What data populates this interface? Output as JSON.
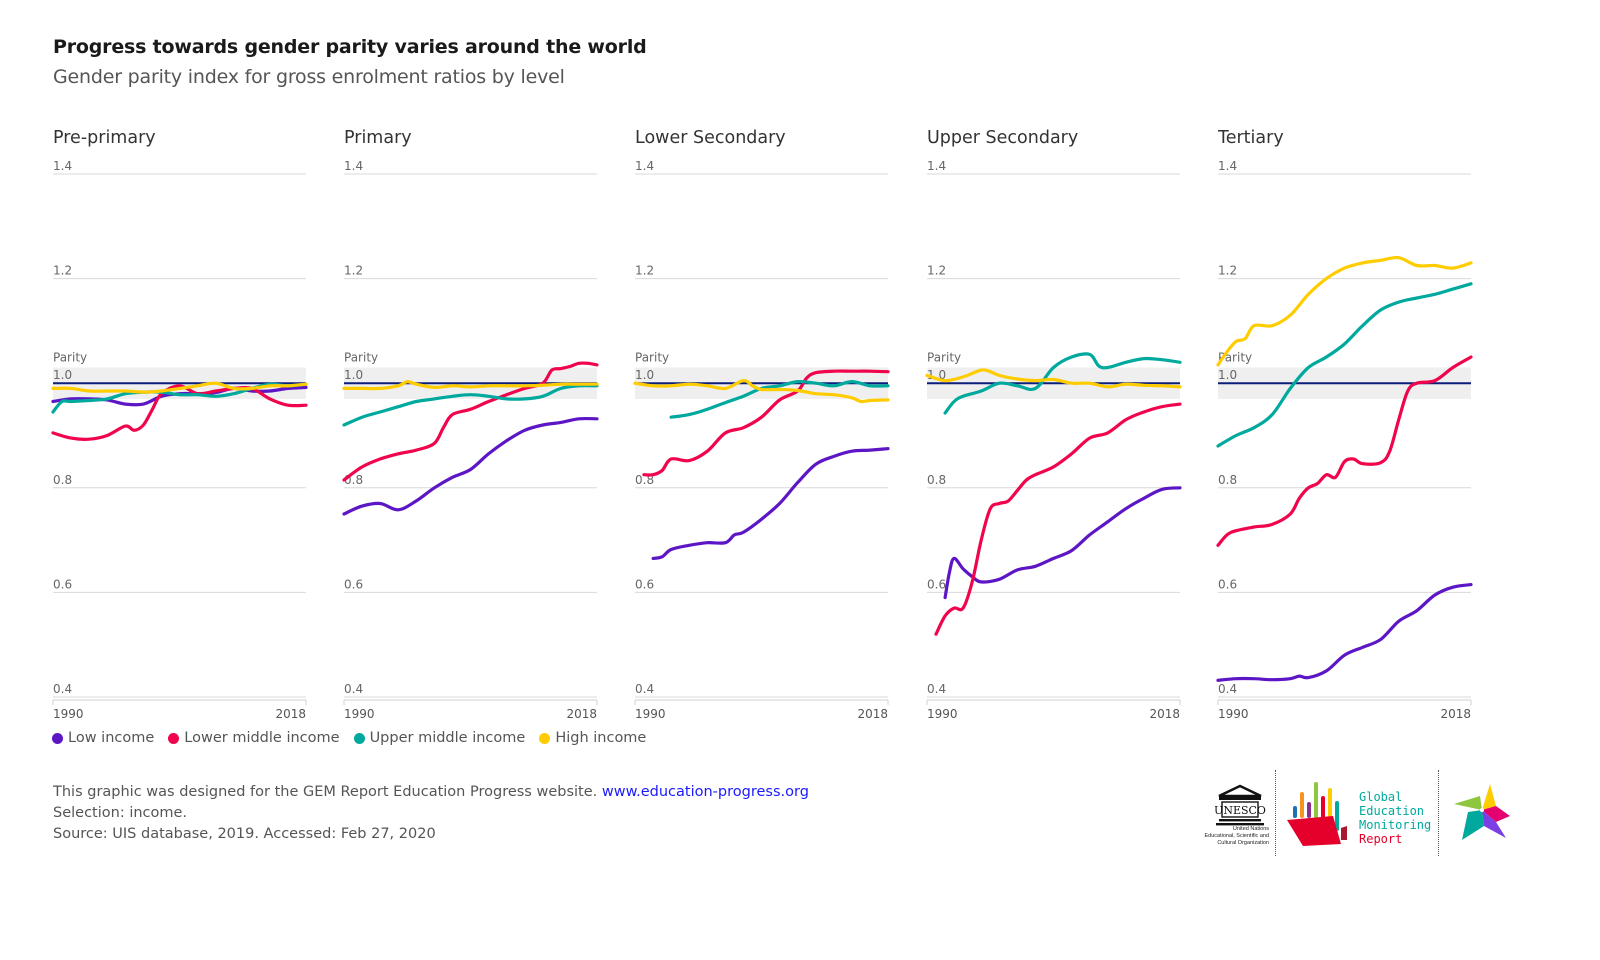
{
  "header": {
    "title": "Progress towards gender parity varies around the world",
    "subtitle": "Gender parity index for gross enrolment ratios by level"
  },
  "legend": [
    {
      "name": "Low income",
      "color": "#5c16c5"
    },
    {
      "name": "Lower middle income",
      "color": "#f0044c"
    },
    {
      "name": "Upper middle income",
      "color": "#00a99d"
    },
    {
      "name": "High income",
      "color": "#ffcc00"
    }
  ],
  "footer": {
    "line1": "This graphic was designed for the GEM Report Education Progress website.",
    "link": "www.education-progress.org",
    "line2": "Selection: income.",
    "line3": "Source: UIS database, 2019. Accessed: Feb 27, 2020"
  },
  "logos": {
    "unesco_text": [
      "United Nations",
      "Educational, Scientific and",
      "Cultural Organization"
    ],
    "unesco_mark": "UNESCO",
    "gem_text": [
      "Global",
      "Education",
      "Monitoring",
      "Report"
    ]
  },
  "chart_data": [
    {
      "type": "line",
      "title": "Pre-primary",
      "yticks": [
        1.4,
        1.2,
        1.0,
        0.8,
        0.6,
        0.4
      ],
      "ylim": [
        0.4,
        1.4
      ],
      "xlim": [
        1990,
        2018
      ],
      "xticks": [
        "1990",
        "2018"
      ],
      "parity_label": "Parity",
      "parity_band": [
        0.97,
        1.03
      ],
      "parity_line": 1.0,
      "series": [
        {
          "name": "Low income",
          "x": [
            1990,
            1992,
            1994,
            1996,
            1998,
            2000,
            2002,
            2004,
            2006,
            2008,
            2010,
            2012,
            2014,
            2016,
            2018
          ],
          "values": [
            0.965,
            0.97,
            0.97,
            0.968,
            0.96,
            0.96,
            0.975,
            0.98,
            0.98,
            0.982,
            0.99,
            0.985,
            0.985,
            0.99,
            0.992
          ]
        },
        {
          "name": "Lower middle income",
          "x": [
            1990,
            1992,
            1994,
            1996,
            1998,
            1999,
            2000,
            2001,
            2002,
            2004,
            2006,
            2008,
            2010,
            2012,
            2014,
            2016,
            2018
          ],
          "values": [
            0.905,
            0.895,
            0.893,
            0.9,
            0.918,
            0.91,
            0.92,
            0.95,
            0.98,
            0.995,
            0.98,
            0.985,
            0.99,
            0.99,
            0.97,
            0.958,
            0.958
          ]
        },
        {
          "name": "Upper middle income",
          "x": [
            1990,
            1991,
            1992,
            1994,
            1996,
            1998,
            2000,
            2002,
            2004,
            2006,
            2008,
            2010,
            2012,
            2014,
            2016,
            2018
          ],
          "values": [
            0.945,
            0.965,
            0.965,
            0.967,
            0.97,
            0.98,
            0.983,
            0.983,
            0.978,
            0.978,
            0.975,
            0.98,
            0.99,
            0.998,
            0.995,
            0.998
          ]
        },
        {
          "name": "High income",
          "x": [
            1990,
            1992,
            1994,
            1996,
            1998,
            2000,
            2002,
            2004,
            2006,
            2008,
            2010,
            2012,
            2014,
            2016,
            2018
          ],
          "values": [
            0.99,
            0.99,
            0.985,
            0.985,
            0.985,
            0.983,
            0.985,
            0.99,
            0.995,
            1.0,
            0.99,
            0.99,
            0.995,
            0.995,
            0.998
          ]
        }
      ]
    },
    {
      "type": "line",
      "title": "Primary",
      "yticks": [
        1.4,
        1.2,
        1.0,
        0.8,
        0.6,
        0.4
      ],
      "ylim": [
        0.4,
        1.4
      ],
      "xlim": [
        1990,
        2018
      ],
      "xticks": [
        "1990",
        "2018"
      ],
      "parity_label": "Parity",
      "parity_band": [
        0.97,
        1.03
      ],
      "parity_line": 1.0,
      "series": [
        {
          "name": "Low income",
          "x": [
            1990,
            1992,
            1994,
            1996,
            1998,
            2000,
            2002,
            2004,
            2006,
            2008,
            2010,
            2012,
            2014,
            2016,
            2018
          ],
          "values": [
            0.75,
            0.765,
            0.77,
            0.758,
            0.775,
            0.8,
            0.82,
            0.835,
            0.865,
            0.89,
            0.91,
            0.92,
            0.925,
            0.932,
            0.932
          ]
        },
        {
          "name": "Lower middle income",
          "x": [
            1990,
            1992,
            1994,
            1996,
            1998,
            2000,
            2001,
            2002,
            2004,
            2006,
            2008,
            2010,
            2012,
            2013,
            2014,
            2015,
            2016,
            2017,
            2018
          ],
          "values": [
            0.815,
            0.84,
            0.855,
            0.865,
            0.872,
            0.885,
            0.915,
            0.94,
            0.95,
            0.965,
            0.978,
            0.99,
            1.0,
            1.025,
            1.028,
            1.032,
            1.038,
            1.038,
            1.035
          ]
        },
        {
          "name": "Upper middle income",
          "x": [
            1990,
            1992,
            1994,
            1996,
            1998,
            2000,
            2002,
            2004,
            2006,
            2008,
            2010,
            2012,
            2014,
            2016,
            2018
          ],
          "values": [
            0.92,
            0.935,
            0.945,
            0.955,
            0.965,
            0.97,
            0.975,
            0.978,
            0.975,
            0.97,
            0.97,
            0.975,
            0.99,
            0.995,
            0.995
          ]
        },
        {
          "name": "High income",
          "x": [
            1990,
            1992,
            1994,
            1996,
            1997,
            1998,
            2000,
            2002,
            2004,
            2006,
            2008,
            2010,
            2012,
            2014,
            2016,
            2018
          ],
          "values": [
            0.99,
            0.99,
            0.99,
            0.995,
            1.003,
            0.998,
            0.992,
            0.995,
            0.993,
            0.995,
            0.995,
            0.995,
            0.996,
            0.998,
            0.998,
            0.998
          ]
        }
      ]
    },
    {
      "type": "line",
      "title": "Lower Secondary",
      "yticks": [
        1.4,
        1.2,
        1.0,
        0.8,
        0.6,
        0.4
      ],
      "ylim": [
        0.4,
        1.4
      ],
      "xlim": [
        1990,
        2018
      ],
      "xticks": [
        "1990",
        "2018"
      ],
      "parity_label": "Parity",
      "parity_band": [
        0.97,
        1.03
      ],
      "parity_line": 1.0,
      "series": [
        {
          "name": "Low income",
          "x": [
            1992,
            1993,
            1994,
            1996,
            1998,
            2000,
            2001,
            2002,
            2004,
            2006,
            2008,
            2010,
            2012,
            2014,
            2016,
            2018
          ],
          "values": [
            0.665,
            0.668,
            0.682,
            0.69,
            0.695,
            0.695,
            0.71,
            0.715,
            0.74,
            0.77,
            0.81,
            0.845,
            0.86,
            0.87,
            0.872,
            0.875
          ]
        },
        {
          "name": "Lower middle income",
          "x": [
            1991,
            1992,
            1993,
            1994,
            1996,
            1998,
            2000,
            2002,
            2004,
            2006,
            2008,
            2009,
            2010,
            2012,
            2014,
            2016,
            2018
          ],
          "values": [
            0.825,
            0.825,
            0.833,
            0.855,
            0.852,
            0.87,
            0.905,
            0.915,
            0.935,
            0.968,
            0.985,
            1.01,
            1.02,
            1.023,
            1.023,
            1.023,
            1.022
          ]
        },
        {
          "name": "Upper middle income",
          "x": [
            1994,
            1996,
            1998,
            2000,
            2002,
            2004,
            2006,
            2008,
            2010,
            2012,
            2014,
            2016,
            2018
          ],
          "values": [
            0.935,
            0.94,
            0.95,
            0.963,
            0.975,
            0.99,
            0.995,
            1.003,
            1.0,
            0.995,
            1.003,
            0.995,
            0.995
          ]
        },
        {
          "name": "High income",
          "x": [
            1990,
            1992,
            1994,
            1996,
            1998,
            2000,
            2002,
            2003,
            2004,
            2006,
            2008,
            2010,
            2012,
            2014,
            2015,
            2016,
            2018
          ],
          "values": [
            1.0,
            0.995,
            0.995,
            0.998,
            0.995,
            0.99,
            1.005,
            0.995,
            0.988,
            0.988,
            0.986,
            0.98,
            0.978,
            0.972,
            0.965,
            0.967,
            0.968
          ]
        }
      ]
    },
    {
      "type": "line",
      "title": "Upper Secondary",
      "yticks": [
        1.4,
        1.2,
        1.0,
        0.8,
        0.6,
        0.4
      ],
      "ylim": [
        0.4,
        1.4
      ],
      "xlim": [
        1990,
        2018
      ],
      "xticks": [
        "1990",
        "2018"
      ],
      "parity_label": "Parity",
      "parity_band": [
        0.97,
        1.03
      ],
      "parity_line": 1.0,
      "series": [
        {
          "name": "Low income",
          "x": [
            1992,
            1992.5,
            1993,
            1994,
            1995,
            1996,
            1998,
            2000,
            2002,
            2004,
            2006,
            2008,
            2010,
            2012,
            2014,
            2016,
            2018
          ],
          "values": [
            0.59,
            0.64,
            0.665,
            0.645,
            0.63,
            0.62,
            0.625,
            0.643,
            0.65,
            0.665,
            0.68,
            0.71,
            0.735,
            0.76,
            0.78,
            0.797,
            0.8
          ]
        },
        {
          "name": "Lower middle income",
          "x": [
            1991,
            1992,
            1993,
            1994,
            1995,
            1996,
            1997,
            1998,
            1999,
            2000,
            2001,
            2002,
            2004,
            2006,
            2008,
            2010,
            2012,
            2014,
            2016,
            2018
          ],
          "values": [
            0.52,
            0.555,
            0.57,
            0.57,
            0.62,
            0.7,
            0.76,
            0.77,
            0.775,
            0.795,
            0.815,
            0.825,
            0.84,
            0.865,
            0.895,
            0.905,
            0.93,
            0.945,
            0.955,
            0.96
          ]
        },
        {
          "name": "Upper middle income",
          "x": [
            1992,
            1993,
            1994,
            1996,
            1998,
            2000,
            2002,
            2004,
            2006,
            2008,
            2009,
            2010,
            2012,
            2014,
            2016,
            2018
          ],
          "values": [
            0.943,
            0.965,
            0.975,
            0.985,
            1.0,
            0.995,
            0.99,
            1.03,
            1.05,
            1.055,
            1.033,
            1.03,
            1.04,
            1.047,
            1.045,
            1.04
          ]
        },
        {
          "name": "High income",
          "x": [
            1990,
            1992,
            1994,
            1996,
            1997,
            1998,
            2000,
            2002,
            2004,
            2006,
            2008,
            2010,
            2012,
            2014,
            2016,
            2018
          ],
          "values": [
            1.015,
            1.005,
            1.012,
            1.025,
            1.022,
            1.015,
            1.008,
            1.005,
            1.007,
            1.0,
            1.0,
            0.993,
            0.998,
            0.996,
            0.995,
            0.993
          ]
        }
      ]
    },
    {
      "type": "line",
      "title": "Tertiary",
      "yticks": [
        1.4,
        1.2,
        1.0,
        0.8,
        0.6,
        0.4
      ],
      "ylim": [
        0.4,
        1.4
      ],
      "xlim": [
        1990,
        2018
      ],
      "xticks": [
        "1990",
        "2018"
      ],
      "parity_label": "Parity",
      "parity_band": [
        0.97,
        1.03
      ],
      "parity_line": 1.0,
      "series": [
        {
          "name": "Low income",
          "x": [
            1990,
            1992,
            1994,
            1996,
            1998,
            1999,
            2000,
            2002,
            2004,
            2006,
            2008,
            2010,
            2012,
            2014,
            2016,
            2018
          ],
          "values": [
            0.432,
            0.435,
            0.435,
            0.433,
            0.435,
            0.44,
            0.437,
            0.45,
            0.48,
            0.495,
            0.51,
            0.545,
            0.565,
            0.595,
            0.61,
            0.615
          ]
        },
        {
          "name": "Lower middle income",
          "x": [
            1990,
            1991,
            1992,
            1994,
            1996,
            1998,
            1999,
            2000,
            2001,
            2002,
            2003,
            2004,
            2005,
            2006,
            2008,
            2009,
            2010,
            2011,
            2012,
            2014,
            2016,
            2018
          ],
          "values": [
            0.69,
            0.71,
            0.718,
            0.725,
            0.73,
            0.75,
            0.78,
            0.8,
            0.808,
            0.825,
            0.82,
            0.85,
            0.855,
            0.846,
            0.848,
            0.87,
            0.93,
            0.985,
            1.0,
            1.005,
            1.03,
            1.05
          ]
        },
        {
          "name": "Upper middle income",
          "x": [
            1990,
            1992,
            1994,
            1996,
            1998,
            2000,
            2002,
            2004,
            2006,
            2008,
            2010,
            2012,
            2014,
            2016,
            2018
          ],
          "values": [
            0.88,
            0.9,
            0.915,
            0.94,
            0.99,
            1.03,
            1.05,
            1.075,
            1.11,
            1.14,
            1.155,
            1.163,
            1.17,
            1.18,
            1.19
          ]
        },
        {
          "name": "High income",
          "x": [
            1990,
            1991,
            1992,
            1993,
            1994,
            1996,
            1998,
            2000,
            2002,
            2004,
            2006,
            2008,
            2010,
            2012,
            2014,
            2016,
            2018
          ],
          "values": [
            1.035,
            1.06,
            1.08,
            1.085,
            1.11,
            1.11,
            1.13,
            1.17,
            1.2,
            1.22,
            1.23,
            1.235,
            1.24,
            1.225,
            1.225,
            1.22,
            1.23
          ]
        }
      ]
    }
  ]
}
